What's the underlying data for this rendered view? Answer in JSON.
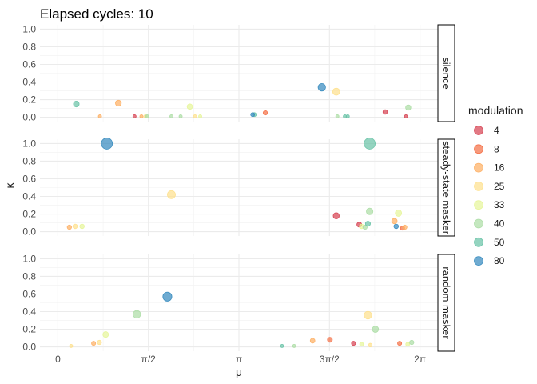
{
  "chart_data": {
    "type": "scatter",
    "title": "Elapsed cycles: 10",
    "xlabel": "μ",
    "ylabel": "κ",
    "xlim": [
      0,
      6.2832
    ],
    "ylim": [
      0,
      1
    ],
    "x_ticks": [
      {
        "value": 0,
        "label": "0"
      },
      {
        "value": 1.5708,
        "label": "π/2"
      },
      {
        "value": 3.1416,
        "label": "π"
      },
      {
        "value": 4.7124,
        "label": "3π/2"
      },
      {
        "value": 6.2832,
        "label": "2π"
      }
    ],
    "y_ticks": [
      {
        "value": 0.0,
        "label": "0.0"
      },
      {
        "value": 0.2,
        "label": "0.2"
      },
      {
        "value": 0.4,
        "label": "0.4"
      },
      {
        "value": 0.6,
        "label": "0.6"
      },
      {
        "value": 0.8,
        "label": "0.8"
      },
      {
        "value": 1.0,
        "label": "1.0"
      }
    ],
    "legend": {
      "title": "modulation",
      "position": "right",
      "entries": [
        {
          "label": "4",
          "color": "#d53e4f"
        },
        {
          "label": "8",
          "color": "#f46d43"
        },
        {
          "label": "16",
          "color": "#fdae61"
        },
        {
          "label": "25",
          "color": "#fee08b"
        },
        {
          "label": "33",
          "color": "#e6f598"
        },
        {
          "label": "40",
          "color": "#abdda4"
        },
        {
          "label": "50",
          "color": "#66c2a5"
        },
        {
          "label": "80",
          "color": "#3288bd"
        }
      ]
    },
    "panels": [
      {
        "name": "silence",
        "points": [
          {
            "x": 0.32,
            "y": 0.15,
            "m": "50"
          },
          {
            "x": 0.73,
            "y": 0.01,
            "m": "16"
          },
          {
            "x": 1.05,
            "y": 0.16,
            "m": "16"
          },
          {
            "x": 1.33,
            "y": 0.01,
            "m": "4"
          },
          {
            "x": 1.45,
            "y": 0.01,
            "m": "16"
          },
          {
            "x": 1.52,
            "y": 0.01,
            "m": "25"
          },
          {
            "x": 1.55,
            "y": 0.01,
            "m": "40"
          },
          {
            "x": 1.97,
            "y": 0.01,
            "m": "40"
          },
          {
            "x": 2.13,
            "y": 0.01,
            "m": "40"
          },
          {
            "x": 2.29,
            "y": 0.12,
            "m": "33"
          },
          {
            "x": 2.38,
            "y": 0.01,
            "m": "25"
          },
          {
            "x": 2.47,
            "y": 0.01,
            "m": "33"
          },
          {
            "x": 3.38,
            "y": 0.03,
            "m": "80"
          },
          {
            "x": 3.41,
            "y": 0.03,
            "m": "50"
          },
          {
            "x": 3.6,
            "y": 0.05,
            "m": "8"
          },
          {
            "x": 4.58,
            "y": 0.34,
            "m": "80"
          },
          {
            "x": 4.83,
            "y": 0.29,
            "m": "25"
          },
          {
            "x": 4.85,
            "y": 0.01,
            "m": "40"
          },
          {
            "x": 4.98,
            "y": 0.01,
            "m": "50"
          },
          {
            "x": 5.03,
            "y": 0.01,
            "m": "50"
          },
          {
            "x": 5.68,
            "y": 0.06,
            "m": "4"
          },
          {
            "x": 6.04,
            "y": 0.01,
            "m": "4"
          },
          {
            "x": 6.08,
            "y": 0.11,
            "m": "40"
          }
        ]
      },
      {
        "name": "steady-state masker",
        "points": [
          {
            "x": 0.2,
            "y": 0.05,
            "m": "16"
          },
          {
            "x": 0.3,
            "y": 0.06,
            "m": "25"
          },
          {
            "x": 0.42,
            "y": 0.06,
            "m": "33"
          },
          {
            "x": 0.85,
            "y": 1.0,
            "m": "80"
          },
          {
            "x": 1.97,
            "y": 0.42,
            "m": "25"
          },
          {
            "x": 4.83,
            "y": 0.18,
            "m": "4"
          },
          {
            "x": 5.23,
            "y": 0.08,
            "m": "4"
          },
          {
            "x": 5.27,
            "y": 0.06,
            "m": "33"
          },
          {
            "x": 5.33,
            "y": 0.05,
            "m": "40"
          },
          {
            "x": 5.38,
            "y": 0.09,
            "m": "50"
          },
          {
            "x": 5.41,
            "y": 1.0,
            "m": "50"
          },
          {
            "x": 5.41,
            "y": 0.23,
            "m": "40"
          },
          {
            "x": 5.84,
            "y": 0.12,
            "m": "16"
          },
          {
            "x": 5.87,
            "y": 0.06,
            "m": "80"
          },
          {
            "x": 5.91,
            "y": 0.21,
            "m": "33"
          },
          {
            "x": 5.98,
            "y": 0.04,
            "m": "8"
          },
          {
            "x": 6.02,
            "y": 0.05,
            "m": "16"
          }
        ]
      },
      {
        "name": "random masker",
        "points": [
          {
            "x": 0.23,
            "y": 0.01,
            "m": "25"
          },
          {
            "x": 0.62,
            "y": 0.04,
            "m": "16"
          },
          {
            "x": 0.72,
            "y": 0.05,
            "m": "25"
          },
          {
            "x": 0.83,
            "y": 0.14,
            "m": "33"
          },
          {
            "x": 1.37,
            "y": 0.37,
            "m": "40"
          },
          {
            "x": 1.9,
            "y": 0.57,
            "m": "80"
          },
          {
            "x": 3.89,
            "y": 0.01,
            "m": "50"
          },
          {
            "x": 4.1,
            "y": 0.01,
            "m": "40"
          },
          {
            "x": 4.42,
            "y": 0.07,
            "m": "16"
          },
          {
            "x": 4.72,
            "y": 0.08,
            "m": "8"
          },
          {
            "x": 5.13,
            "y": 0.04,
            "m": "4"
          },
          {
            "x": 5.27,
            "y": 0.03,
            "m": "33"
          },
          {
            "x": 5.38,
            "y": 0.36,
            "m": "25"
          },
          {
            "x": 5.42,
            "y": 0.02,
            "m": "25"
          },
          {
            "x": 5.51,
            "y": 0.2,
            "m": "40"
          },
          {
            "x": 5.93,
            "y": 0.04,
            "m": "8"
          },
          {
            "x": 6.07,
            "y": 0.03,
            "m": "33"
          },
          {
            "x": 6.14,
            "y": 0.05,
            "m": "40"
          }
        ]
      }
    ]
  }
}
